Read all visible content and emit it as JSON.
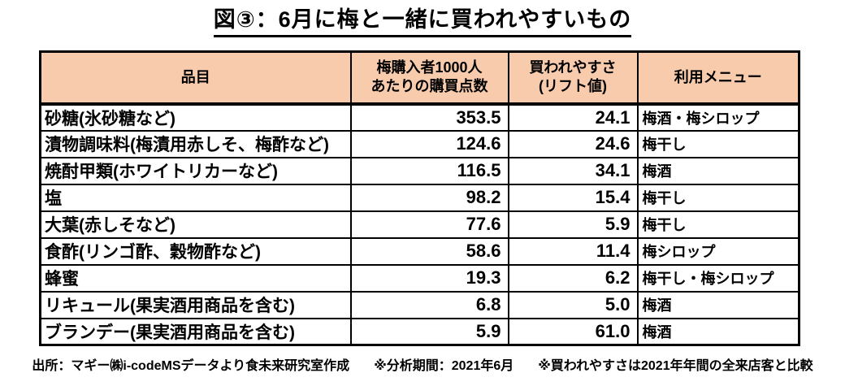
{
  "title": "図③：6月に梅と一緒に買われやすいもの",
  "colors": {
    "header_bg": "#F8CBAD",
    "border": "#000000",
    "text": "#000000",
    "background": "#FFFFFF"
  },
  "table": {
    "headers": {
      "item": "品目",
      "points_line1": "梅購入者1000人",
      "points_line2": "あたりの購買点数",
      "lift_line1": "買われやすさ",
      "lift_line2": "(リフト値)",
      "menu": "利用メニュー"
    },
    "rows": [
      {
        "item": "砂糖(氷砂糖など)",
        "points": "353.5",
        "lift": "24.1",
        "menu": "梅酒・梅シロップ"
      },
      {
        "item": "漬物調味料(梅漬用赤しそ、梅酢など)",
        "points": "124.6",
        "lift": "24.6",
        "menu": "梅干し"
      },
      {
        "item": "焼酎甲類(ホワイトリカーなど)",
        "points": "116.5",
        "lift": "34.1",
        "menu": "梅酒"
      },
      {
        "item": "塩",
        "points": "98.2",
        "lift": "15.4",
        "menu": "梅干し"
      },
      {
        "item": "大葉(赤しそなど)",
        "points": "77.6",
        "lift": "5.9",
        "menu": "梅干し"
      },
      {
        "item": "食酢(リンゴ酢、穀物酢など)",
        "points": "58.6",
        "lift": "11.4",
        "menu": "梅シロップ"
      },
      {
        "item": "蜂蜜",
        "points": "19.3",
        "lift": "6.2",
        "menu": "梅干し・梅シロップ"
      },
      {
        "item": "リキュール(果実酒用商品を含む)",
        "points": "6.8",
        "lift": "5.0",
        "menu": "梅酒"
      },
      {
        "item": "ブランデー(果実酒用商品を含む)",
        "points": "5.9",
        "lift": "61.0",
        "menu": "梅酒"
      }
    ]
  },
  "footer": {
    "source": "出所：マギー㈱i-codeMSデータより食未来研究室作成",
    "period": "※分析期間：2021年6月",
    "note": "※買われやすさは2021年年間の全来店客と比較"
  },
  "chart_data": {
    "type": "table",
    "title": "図③：6月に梅と一緒に買われやすいもの",
    "columns": [
      "品目",
      "梅購入者1000人あたりの購買点数",
      "買われやすさ(リフト値)",
      "利用メニュー"
    ],
    "rows": [
      [
        "砂糖(氷砂糖など)",
        353.5,
        24.1,
        "梅酒・梅シロップ"
      ],
      [
        "漬物調味料(梅漬用赤しそ、梅酢など)",
        124.6,
        24.6,
        "梅干し"
      ],
      [
        "焼酎甲類(ホワイトリカーなど)",
        116.5,
        34.1,
        "梅酒"
      ],
      [
        "塩",
        98.2,
        15.4,
        "梅干し"
      ],
      [
        "大葉(赤しそなど)",
        77.6,
        5.9,
        "梅干し"
      ],
      [
        "食酢(リンゴ酢、穀物酢など)",
        58.6,
        11.4,
        "梅シロップ"
      ],
      [
        "蜂蜜",
        19.3,
        6.2,
        "梅干し・梅シロップ"
      ],
      [
        "リキュール(果実酒用商品を含む)",
        6.8,
        5.0,
        "梅酒"
      ],
      [
        "ブランデー(果実酒用商品を含む)",
        5.9,
        61.0,
        "梅酒"
      ]
    ],
    "notes": [
      "出所：マギー㈱i-codeMSデータより食未来研究室作成",
      "※分析期間：2021年6月",
      "※買われやすさは2021年年間の全来店客と比較"
    ]
  }
}
